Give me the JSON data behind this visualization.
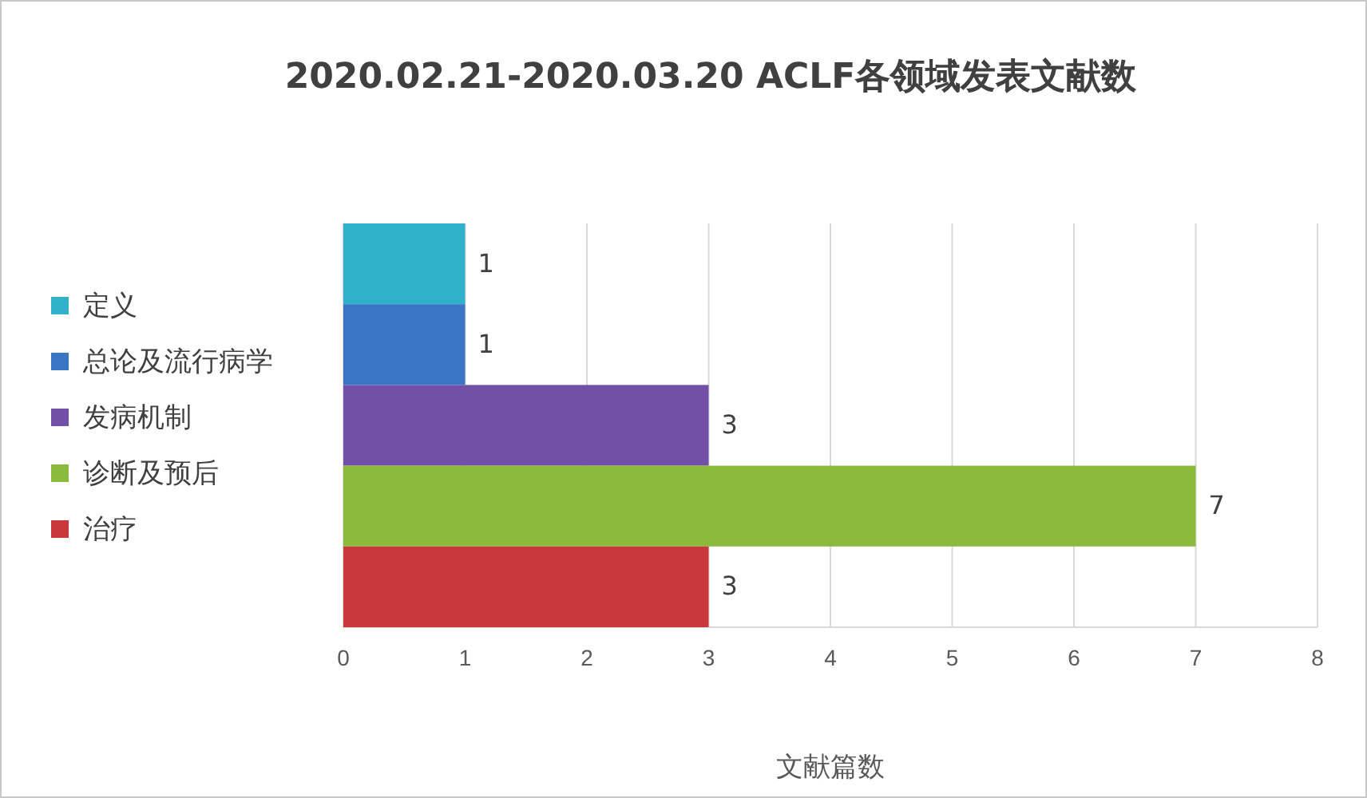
{
  "chart_data": {
    "type": "bar",
    "orientation": "horizontal",
    "title": "2020.02.21-2020.03.20 ACLF各领域发表文献数",
    "xlabel": "文献篇数",
    "categories": [
      null,
      null,
      null,
      null,
      null
    ],
    "series": [
      {
        "name": "定义",
        "color": "#31b0c9",
        "values": [
          1,
          null,
          null,
          null,
          null
        ]
      },
      {
        "name": "总论及流行病学",
        "color": "#3a74c4",
        "values": [
          null,
          1,
          null,
          null,
          null
        ]
      },
      {
        "name": "发病机制",
        "color": "#7350a8",
        "values": [
          null,
          null,
          3,
          null,
          null
        ]
      },
      {
        "name": "诊断及预后",
        "color": "#8cba3c",
        "values": [
          null,
          null,
          null,
          7,
          null
        ]
      },
      {
        "name": "治疗",
        "color": "#c9383a",
        "values": [
          null,
          null,
          null,
          null,
          3
        ]
      }
    ],
    "xlim": [
      0,
      8
    ],
    "xticks": [
      0,
      1,
      2,
      3,
      4,
      5,
      6,
      7,
      8
    ],
    "grid": "x",
    "legend": "left",
    "tick_labels": "x",
    "data_labels": true
  }
}
